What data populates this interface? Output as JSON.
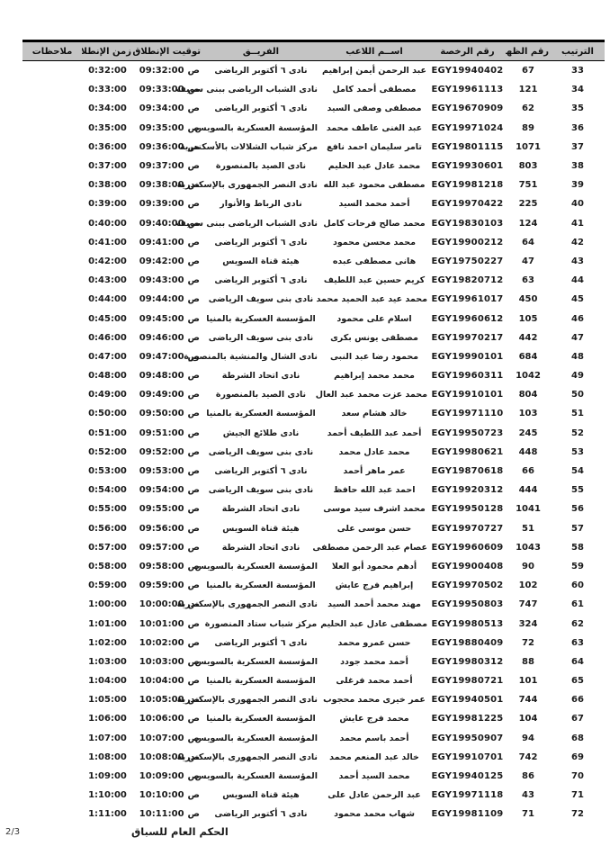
{
  "page": {
    "footer_title": "الحكم العام للسباق",
    "page_number": "2/3"
  },
  "table": {
    "meridiem": "ص",
    "header_bg_color": "#c4c4c4",
    "headers": [
      "الترتيب",
      "رقم الظهر",
      "رقم الرخصة",
      "اســم اللاعب",
      "الفريــق",
      "توقيت الإنطلاق",
      "زمن الإنطلاق",
      "ملاحظات"
    ],
    "rows": [
      {
        "rank": "33",
        "bib": "67",
        "license": "EGY19940402",
        "name": "عبد الرحمن أيمن إبراهيم",
        "team": "نادى ٦ أكتوبر الرياضى",
        "start": "09:32:00",
        "elapsed": "0:32:00",
        "notes": ""
      },
      {
        "rank": "34",
        "bib": "121",
        "license": "EGY19961113",
        "name": "مصطفى أحمد كامل",
        "team": "نادى الشباب الرياضى ببنى سويف",
        "start": "09:33:00",
        "elapsed": "0:33:00",
        "notes": ""
      },
      {
        "rank": "35",
        "bib": "62",
        "license": "EGY19670909",
        "name": "مصطفى وصفى السيد",
        "team": "نادى ٦ أكتوبر الرياضى",
        "start": "09:34:00",
        "elapsed": "0:34:00",
        "notes": ""
      },
      {
        "rank": "36",
        "bib": "89",
        "license": "EGY19971024",
        "name": "عبد الغنى عاطف محمد",
        "team": "المؤسسة العسكرية بالسويس",
        "start": "09:35:00",
        "elapsed": "0:35:00",
        "notes": ""
      },
      {
        "rank": "37",
        "bib": "1071",
        "license": "EGY19801115",
        "name": "تامر سليمان احمد نافع",
        "team": "مركز شباب الشلالات بالأسكندرية",
        "start": "09:36:00",
        "elapsed": "0:36:00",
        "notes": ""
      },
      {
        "rank": "38",
        "bib": "803",
        "license": "EGY19930601",
        "name": "محمد عادل عبد الحليم",
        "team": "نادى الصيد بالمنصورة",
        "start": "09:37:00",
        "elapsed": "0:37:00",
        "notes": ""
      },
      {
        "rank": "39",
        "bib": "751",
        "license": "EGY19981218",
        "name": "مصطفى محمود عبد الله",
        "team": "نادى النصر الجمهورى بالإسكندرية",
        "start": "09:38:00",
        "elapsed": "0:38:00",
        "notes": ""
      },
      {
        "rank": "40",
        "bib": "225",
        "license": "EGY19970422",
        "name": "أحمد محمد السيد",
        "team": "نادى الرباط والأنوار",
        "start": "09:39:00",
        "elapsed": "0:39:00",
        "notes": ""
      },
      {
        "rank": "41",
        "bib": "124",
        "license": "EGY19830103",
        "name": "محمد صالح فرحات كامل",
        "team": "نادى الشباب الرياضى ببنى سويف",
        "start": "09:40:00",
        "elapsed": "0:40:00",
        "notes": ""
      },
      {
        "rank": "42",
        "bib": "64",
        "license": "EGY19900212",
        "name": "محمد محسن محمود",
        "team": "نادى ٦ أكتوبر الرياضى",
        "start": "09:41:00",
        "elapsed": "0:41:00",
        "notes": ""
      },
      {
        "rank": "43",
        "bib": "47",
        "license": "EGY19750227",
        "name": "هانى مصطفى عبده",
        "team": "هيئة قناة السويس",
        "start": "09:42:00",
        "elapsed": "0:42:00",
        "notes": ""
      },
      {
        "rank": "44",
        "bib": "63",
        "license": "EGY19820712",
        "name": "كريم حسين عبد اللطيف",
        "team": "نادى ٦ أكتوبر الرياضى",
        "start": "09:43:00",
        "elapsed": "0:43:00",
        "notes": ""
      },
      {
        "rank": "45",
        "bib": "450",
        "license": "EGY19961017",
        "name": "محمد عيد عبد الحميد محمد",
        "team": "نادى بنى سويف الرياضى",
        "start": "09:44:00",
        "elapsed": "0:44:00",
        "notes": ""
      },
      {
        "rank": "46",
        "bib": "105",
        "license": "EGY19960612",
        "name": "اسلام على محمود",
        "team": "المؤسسة العسكرية بالمنيا",
        "start": "09:45:00",
        "elapsed": "0:45:00",
        "notes": ""
      },
      {
        "rank": "47",
        "bib": "442",
        "license": "EGY19970217",
        "name": "مصطفى يونس بكرى",
        "team": "نادى بنى سويف الرياضى",
        "start": "09:46:00",
        "elapsed": "0:46:00",
        "notes": ""
      },
      {
        "rank": "48",
        "bib": "684",
        "license": "EGY19990101",
        "name": "محمود رضا عبد النبى",
        "team": "نادى الشال والمنشية بالمنصورة",
        "start": "09:47:00",
        "elapsed": "0:47:00",
        "notes": ""
      },
      {
        "rank": "49",
        "bib": "1042",
        "license": "EGY19960311",
        "name": "محمد محمد إبراهيم",
        "team": "نادى اتحاد الشرطة",
        "start": "09:48:00",
        "elapsed": "0:48:00",
        "notes": ""
      },
      {
        "rank": "50",
        "bib": "804",
        "license": "EGY19910101",
        "name": "محمد عزت محمد عبد العال",
        "team": "نادى الصيد بالمنصورة",
        "start": "09:49:00",
        "elapsed": "0:49:00",
        "notes": ""
      },
      {
        "rank": "51",
        "bib": "103",
        "license": "EGY19971110",
        "name": "خالد هشام سعد",
        "team": "المؤسسة العسكرية بالمنيا",
        "start": "09:50:00",
        "elapsed": "0:50:00",
        "notes": ""
      },
      {
        "rank": "52",
        "bib": "245",
        "license": "EGY19950723",
        "name": "أحمد عبد اللطيف أحمد",
        "team": "نادى طلائع الجيش",
        "start": "09:51:00",
        "elapsed": "0:51:00",
        "notes": ""
      },
      {
        "rank": "53",
        "bib": "448",
        "license": "EGY19980621",
        "name": "محمد عادل محمد",
        "team": "نادى بنى سويف الرياضى",
        "start": "09:52:00",
        "elapsed": "0:52:00",
        "notes": ""
      },
      {
        "rank": "54",
        "bib": "66",
        "license": "EGY19870618",
        "name": "عمر ماهر أحمد",
        "team": "نادى ٦ أكتوبر الرياضى",
        "start": "09:53:00",
        "elapsed": "0:53:00",
        "notes": ""
      },
      {
        "rank": "55",
        "bib": "444",
        "license": "EGY19920312",
        "name": "احمد عبد الله حافظ",
        "team": "نادى بنى سويف الرياضى",
        "start": "09:54:00",
        "elapsed": "0:54:00",
        "notes": ""
      },
      {
        "rank": "56",
        "bib": "1041",
        "license": "EGY19950128",
        "name": "محمد اشرف سيد موسى",
        "team": "نادى اتحاد الشرطة",
        "start": "09:55:00",
        "elapsed": "0:55:00",
        "notes": ""
      },
      {
        "rank": "57",
        "bib": "51",
        "license": "EGY19970727",
        "name": "حسن موسى على",
        "team": "هيئة قناة السويس",
        "start": "09:56:00",
        "elapsed": "0:56:00",
        "notes": ""
      },
      {
        "rank": "58",
        "bib": "1043",
        "license": "EGY19960609",
        "name": "عصام عبد الرحمن مصطفى",
        "team": "نادى اتحاد الشرطة",
        "start": "09:57:00",
        "elapsed": "0:57:00",
        "notes": ""
      },
      {
        "rank": "59",
        "bib": "90",
        "license": "EGY19900408",
        "name": "أدهم محمود أبو العلا",
        "team": "المؤسسة العسكرية بالسويس",
        "start": "09:58:00",
        "elapsed": "0:58:00",
        "notes": ""
      },
      {
        "rank": "60",
        "bib": "102",
        "license": "EGY19970502",
        "name": "إبراهيم فرج عايش",
        "team": "المؤسسة العسكرية بالمنيا",
        "start": "09:59:00",
        "elapsed": "0:59:00",
        "notes": ""
      },
      {
        "rank": "61",
        "bib": "747",
        "license": "EGY19950803",
        "name": "مهند محمد أحمد السيد",
        "team": "نادى النصر الجمهورى بالإسكندرية",
        "start": "10:00:00",
        "elapsed": "1:00:00",
        "notes": ""
      },
      {
        "rank": "62",
        "bib": "324",
        "license": "EGY19980513",
        "name": "مصطفى عادل عبد الحليم",
        "team": "مركز شباب ستاد المنصورة",
        "start": "10:01:00",
        "elapsed": "1:01:00",
        "notes": ""
      },
      {
        "rank": "63",
        "bib": "72",
        "license": "EGY19880409",
        "name": "حسن عمرو محمد",
        "team": "نادى ٦ أكتوبر الرياضى",
        "start": "10:02:00",
        "elapsed": "1:02:00",
        "notes": ""
      },
      {
        "rank": "64",
        "bib": "88",
        "license": "EGY19980312",
        "name": "أحمد محمد جودد",
        "team": "المؤسسة العسكرية بالسويس",
        "start": "10:03:00",
        "elapsed": "1:03:00",
        "notes": ""
      },
      {
        "rank": "65",
        "bib": "101",
        "license": "EGY19980721",
        "name": "أحمد محمد فرغلى",
        "team": "المؤسسة العسكرية بالمنيا",
        "start": "10:04:00",
        "elapsed": "1:04:00",
        "notes": ""
      },
      {
        "rank": "66",
        "bib": "744",
        "license": "EGY19940501",
        "name": "عمر خيرى محمد محجوب",
        "team": "نادى النصر الجمهورى بالإسكندرية",
        "start": "10:05:00",
        "elapsed": "1:05:00",
        "notes": ""
      },
      {
        "rank": "67",
        "bib": "104",
        "license": "EGY19981225",
        "name": "محمد فرج عايش",
        "team": "المؤسسة العسكرية بالمنيا",
        "start": "10:06:00",
        "elapsed": "1:06:00",
        "notes": ""
      },
      {
        "rank": "68",
        "bib": "94",
        "license": "EGY19950907",
        "name": "أحمد باسم محمد",
        "team": "المؤسسة العسكرية بالسويس",
        "start": "10:07:00",
        "elapsed": "1:07:00",
        "notes": ""
      },
      {
        "rank": "69",
        "bib": "742",
        "license": "EGY19910701",
        "name": "خالد عبد المنعم محمد",
        "team": "نادى النصر الجمهورى بالإسكندرية",
        "start": "10:08:00",
        "elapsed": "1:08:00",
        "notes": ""
      },
      {
        "rank": "70",
        "bib": "86",
        "license": "EGY19940125",
        "name": "محمد السيد أحمد",
        "team": "المؤسسة العسكرية بالسويس",
        "start": "10:09:00",
        "elapsed": "1:09:00",
        "notes": ""
      },
      {
        "rank": "71",
        "bib": "43",
        "license": "EGY19971118",
        "name": "عبد الرحمن عادل على",
        "team": "هيئة قناة السويس",
        "start": "10:10:00",
        "elapsed": "1:10:00",
        "notes": ""
      },
      {
        "rank": "72",
        "bib": "71",
        "license": "EGY19981109",
        "name": "شهاب محمد محمود",
        "team": "نادى ٦ أكتوبر الرياضى",
        "start": "10:11:00",
        "elapsed": "1:11:00",
        "notes": ""
      }
    ]
  }
}
